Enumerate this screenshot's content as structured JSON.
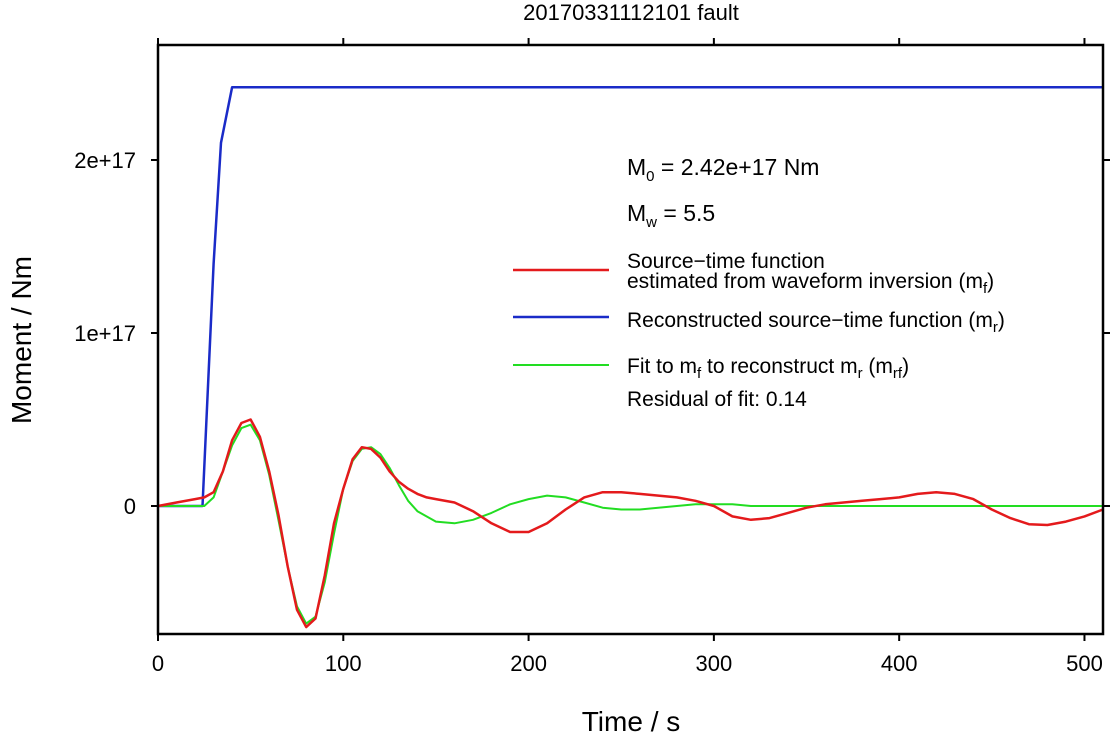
{
  "chart_data": {
    "type": "line",
    "title": "20170331112101 fault",
    "xlabel": "Time / s",
    "ylabel": "Moment / Nm",
    "xlim": [
      0,
      510
    ],
    "ylim": [
      -7.5e+16,
      2.65e+17
    ],
    "x_ticks": [
      0,
      100,
      200,
      300,
      400,
      500
    ],
    "x_tick_labels": [
      "0",
      "100",
      "200",
      "300",
      "400",
      "500"
    ],
    "y_ticks": [
      0,
      1e+17,
      2e+17
    ],
    "y_tick_labels": [
      "0",
      "1e+17",
      "2e+17"
    ],
    "grid": false,
    "legend_position": "right",
    "annotations": {
      "m0": {
        "prefix": "M",
        "sub": "0",
        "text": " = 2.42e+17 Nm"
      },
      "mw": {
        "prefix": "M",
        "sub": "w",
        "text": " = 5.5"
      },
      "residual": "Residual of fit: 0.14"
    },
    "legend": [
      {
        "color": "#e41a1c",
        "width": 2.5,
        "line1": "Source−time function",
        "line2": "estimated from waveform inversion (m",
        "sub": "f",
        "suffix": ")"
      },
      {
        "color": "#1a2bc8",
        "width": 2.5,
        "line1": "Reconstructed source−time function (m",
        "sub": "r",
        "suffix": ")"
      },
      {
        "color": "#22dd22",
        "width": 2,
        "pre": "Fit to m",
        "sub1": "f",
        "mid": " to reconstruct m",
        "sub2": "r",
        "mid2": " (m",
        "sub3": "rf",
        "suffix": ")"
      }
    ],
    "series": [
      {
        "name": "Source−time function estimated from waveform inversion (mf)",
        "color": "#e41a1c",
        "x": [
          0,
          10,
          20,
          25,
          30,
          35,
          40,
          45,
          50,
          55,
          60,
          65,
          70,
          75,
          80,
          85,
          90,
          95,
          100,
          105,
          110,
          115,
          120,
          125,
          130,
          135,
          140,
          145,
          150,
          160,
          170,
          180,
          190,
          200,
          210,
          220,
          230,
          240,
          250,
          260,
          270,
          280,
          290,
          300,
          310,
          320,
          330,
          340,
          350,
          360,
          370,
          380,
          390,
          400,
          410,
          420,
          430,
          440,
          450,
          460,
          470,
          480,
          490,
          500,
          510
        ],
        "y": [
          0,
          2000000000000000.0,
          4000000000000000.0,
          5000000000000000.0,
          8000000000000000.0,
          2e+16,
          3.8e+16,
          4.8e+16,
          5e+16,
          4e+16,
          2e+16,
          -5000000000000000.0,
          -3.5e+16,
          -6e+16,
          -7e+16,
          -6.5e+16,
          -4e+16,
          -1e+16,
          1e+16,
          2.7e+16,
          3.4e+16,
          3.3e+16,
          2.8e+16,
          2e+16,
          1.4e+16,
          1e+16,
          7000000000000000.0,
          5000000000000000.0,
          4000000000000000.0,
          2000000000000000.0,
          -3000000000000000.0,
          -1e+16,
          -1.5e+16,
          -1.5e+16,
          -1e+16,
          -2000000000000000.0,
          5000000000000000.0,
          8000000000000000.0,
          8000000000000000.0,
          7000000000000000.0,
          6000000000000000.0,
          5000000000000000.0,
          3000000000000000.0,
          0,
          -6000000000000000.0,
          -8000000000000000.0,
          -7000000000000000.0,
          -4000000000000000.0,
          -1000000000000000.0,
          1000000000000000.0,
          2000000000000000.0,
          3000000000000000.0,
          4000000000000000.0,
          5000000000000000.0,
          7000000000000000.0,
          8000000000000000.0,
          7000000000000000.0,
          4000000000000000.0,
          -2000000000000000.0,
          -7000000000000000.0,
          -1.05e+16,
          -1.1e+16,
          -9000000000000000.0,
          -6000000000000000.0,
          -2000000000000000.0
        ]
      },
      {
        "name": "Reconstructed source−time function (mr)",
        "color": "#1a2bc8",
        "x": [
          0,
          24,
          30,
          34,
          40,
          510
        ],
        "y": [
          0,
          0,
          1.4e+17,
          2.1e+17,
          2.42e+17,
          2.42e+17
        ]
      },
      {
        "name": "Fit to mf to reconstruct mr (mrf)",
        "color": "#22dd22",
        "x": [
          0,
          20,
          25,
          30,
          35,
          40,
          45,
          50,
          55,
          60,
          65,
          70,
          75,
          80,
          85,
          90,
          95,
          100,
          105,
          110,
          115,
          120,
          125,
          130,
          135,
          140,
          150,
          160,
          170,
          180,
          190,
          200,
          210,
          220,
          230,
          240,
          250,
          260,
          270,
          280,
          290,
          300,
          310,
          320,
          330,
          340,
          350,
          360,
          380,
          400,
          420,
          440,
          460,
          480,
          500,
          510
        ],
        "y": [
          0,
          0,
          0,
          5000000000000000.0,
          2e+16,
          3.5e+16,
          4.5e+16,
          4.7e+16,
          3.8e+16,
          1.8e+16,
          -8000000000000000.0,
          -3.5e+16,
          -5.8e+16,
          -6.8e+16,
          -6.4e+16,
          -4.4e+16,
          -1.6e+16,
          1e+16,
          2.6e+16,
          3.3e+16,
          3.4e+16,
          3e+16,
          2.2e+16,
          1.2e+16,
          3000000000000000.0,
          -3000000000000000.0,
          -9000000000000000.0,
          -1e+16,
          -8000000000000000.0,
          -4000000000000000.0,
          1000000000000000.0,
          4000000000000000.0,
          6000000000000000.0,
          5000000000000000.0,
          2000000000000000.0,
          -1000000000000000.0,
          -2000000000000000.0,
          -2000000000000000.0,
          -1000000000000000.0,
          0,
          1000000000000000.0,
          1000000000000000.0,
          1000000000000000.0,
          0,
          0,
          0,
          0,
          0,
          0,
          0,
          0,
          0,
          0,
          0,
          0,
          0
        ]
      }
    ]
  }
}
